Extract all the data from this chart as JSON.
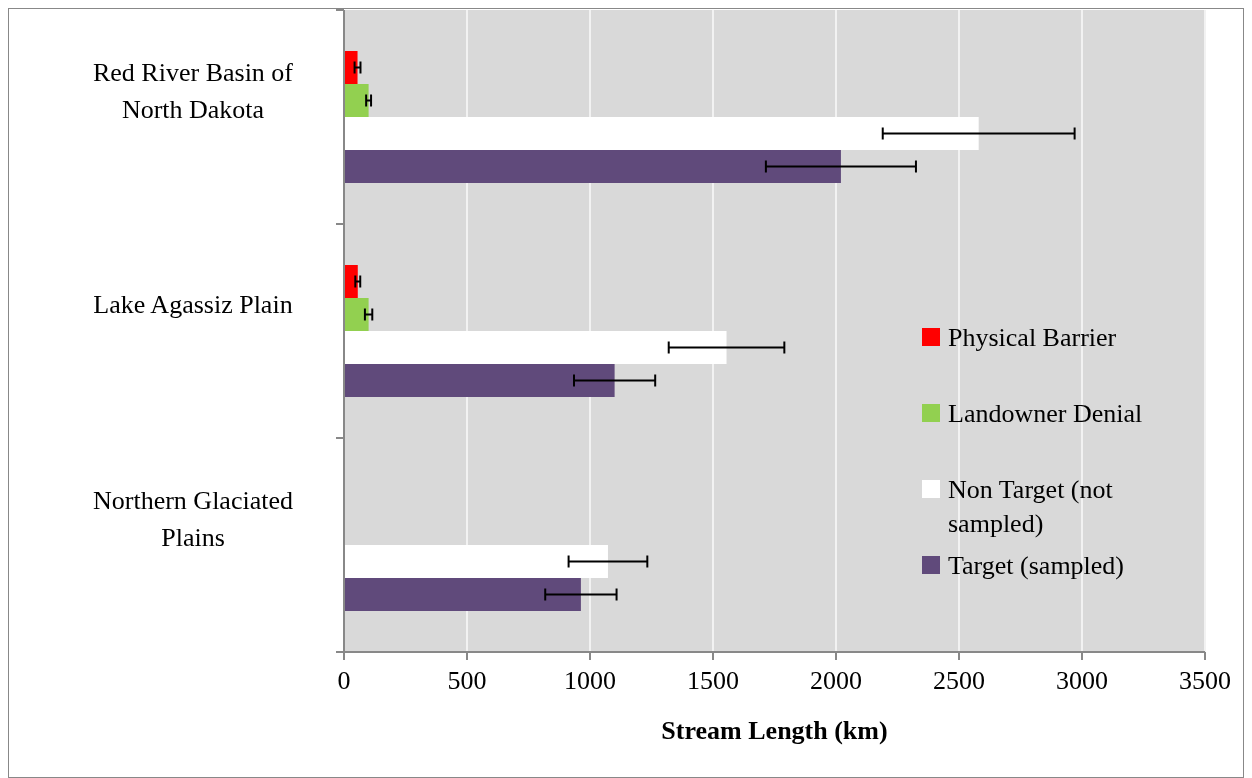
{
  "chart_data": {
    "type": "bar",
    "orientation": "horizontal",
    "xlabel": "Stream Length (km)",
    "categories": [
      "Red River Basin of North Dakota",
      "Lake Agassiz Plain",
      "Northern Glaciated Plains"
    ],
    "series": [
      {
        "name": "Physical Barrier",
        "color": "#ff0000",
        "values": [
          55,
          56,
          0
        ],
        "errors": [
          12,
          10,
          null
        ]
      },
      {
        "name": "Landowner Denial",
        "color": "#92d050",
        "values": [
          100,
          100,
          0
        ],
        "errors": [
          10,
          15,
          null
        ]
      },
      {
        "name": "Non Target (not sampled)",
        "color": "#ffffff",
        "values": [
          2580,
          1555,
          1073
        ],
        "errors": [
          390,
          235,
          160
        ]
      },
      {
        "name": "Target (sampled)",
        "color": "#604a7b",
        "values": [
          2020,
          1100,
          963
        ],
        "errors": [
          305,
          165,
          145
        ]
      }
    ],
    "xlim": [
      0,
      3500
    ],
    "xticks": [
      0,
      500,
      1000,
      1500,
      2000,
      2500,
      3000,
      3500
    ],
    "grid": "x",
    "legend": "right"
  }
}
